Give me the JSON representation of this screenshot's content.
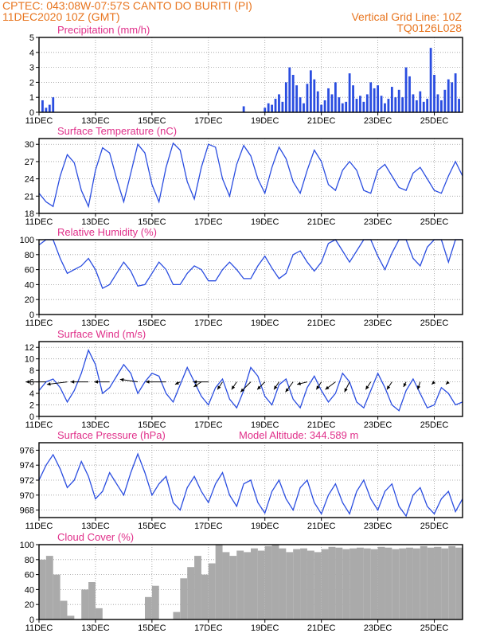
{
  "header": {
    "line1": "CPTEC:   043:08W-07:57S   CANTO DO BURITI (PI)",
    "line2": "11DEC2020 10Z (GMT)",
    "grid_note": "Vertical Grid Line: 10Z",
    "model_id": "TQ0126L028"
  },
  "colors": {
    "header": "#e8751f",
    "title": "#e0308a",
    "series": "#2a4de0",
    "cloud": "#aaaaaa"
  },
  "chart_data": [
    {
      "id": "precip",
      "type": "bar",
      "title": "Precipitation (mm/h)",
      "ylim": [
        0,
        5
      ],
      "yticks": [
        0,
        1,
        2,
        3,
        4,
        5
      ],
      "xlim": [
        0,
        360
      ],
      "xticks": [
        "11DEC",
        "13DEC",
        "15DEC",
        "17DEC",
        "19DEC",
        "21DEC",
        "23DEC",
        "25DEC"
      ],
      "grid": true,
      "x": [
        3,
        6,
        9,
        12,
        174,
        192,
        195,
        198,
        201,
        204,
        207,
        210,
        213,
        216,
        219,
        222,
        225,
        228,
        231,
        234,
        237,
        240,
        243,
        246,
        249,
        252,
        255,
        258,
        261,
        264,
        267,
        270,
        273,
        276,
        279,
        282,
        285,
        288,
        291,
        294,
        297,
        300,
        303,
        306,
        309,
        312,
        315,
        318,
        321,
        324,
        327,
        330,
        333,
        336,
        339,
        342,
        345,
        348,
        351,
        354,
        357
      ],
      "values": [
        0.8,
        0.3,
        0.5,
        1.0,
        0.4,
        0.3,
        0.6,
        0.5,
        0.9,
        1.2,
        0.7,
        2.0,
        3.0,
        2.5,
        1.8,
        1.0,
        0.6,
        1.9,
        2.8,
        2.2,
        1.4,
        0.5,
        0.8,
        1.6,
        1.2,
        2.0,
        1.0,
        0.6,
        0.7,
        2.6,
        1.8,
        0.9,
        1.1,
        0.7,
        1.2,
        2.0,
        1.6,
        1.8,
        1.1,
        0.6,
        0.9,
        1.7,
        1.0,
        1.5,
        1.0,
        3.0,
        2.4,
        1.2,
        0.8,
        1.4,
        0.7,
        0.9,
        4.3,
        2.5,
        1.2,
        0.8,
        1.5,
        2.2,
        2.0,
        2.6,
        0.9
      ]
    },
    {
      "id": "temp",
      "type": "line",
      "title": "Surface Temperature (nC)",
      "ylim": [
        18,
        31
      ],
      "yticks": [
        18,
        21,
        24,
        27,
        30
      ],
      "xlim": [
        0,
        360
      ],
      "xticks": [
        "11DEC",
        "13DEC",
        "15DEC",
        "17DEC",
        "19DEC",
        "21DEC",
        "23DEC",
        "25DEC"
      ],
      "grid": true,
      "x": [
        0,
        6,
        12,
        18,
        24,
        30,
        36,
        42,
        48,
        54,
        60,
        66,
        72,
        78,
        84,
        90,
        96,
        102,
        108,
        114,
        120,
        126,
        132,
        138,
        144,
        150,
        156,
        162,
        168,
        174,
        180,
        186,
        192,
        198,
        204,
        210,
        216,
        222,
        228,
        234,
        240,
        246,
        252,
        258,
        264,
        270,
        276,
        282,
        288,
        294,
        300,
        306,
        312,
        318,
        324,
        330,
        336,
        342,
        348,
        354,
        360
      ],
      "values": [
        21.5,
        20.0,
        19.2,
        24.5,
        28.2,
        26.8,
        22.0,
        19.2,
        25.5,
        29.4,
        28.5,
        24.0,
        20.0,
        25.0,
        30.0,
        28.5,
        23.0,
        20.0,
        26.0,
        30.2,
        29.0,
        23.5,
        20.5,
        26.0,
        30.0,
        29.5,
        24.0,
        21.0,
        26.5,
        29.8,
        28.0,
        24.0,
        21.5,
        26.0,
        29.5,
        27.5,
        23.5,
        21.5,
        25.5,
        29.0,
        27.0,
        23.0,
        22.0,
        25.5,
        27.0,
        25.5,
        22.0,
        21.5,
        25.5,
        26.5,
        24.5,
        22.5,
        22.0,
        25.0,
        26.0,
        24.0,
        22.0,
        21.5,
        24.5,
        27.0,
        24.5
      ]
    },
    {
      "id": "rh",
      "type": "line",
      "title": "Relative Humidity (%)",
      "ylim": [
        0,
        100
      ],
      "yticks": [
        0,
        20,
        40,
        60,
        80,
        100
      ],
      "xlim": [
        0,
        360
      ],
      "xticks": [
        "11DEC",
        "13DEC",
        "15DEC",
        "17DEC",
        "19DEC",
        "21DEC",
        "23DEC",
        "25DEC"
      ],
      "grid": true,
      "x": [
        0,
        6,
        12,
        18,
        24,
        30,
        36,
        42,
        48,
        54,
        60,
        66,
        72,
        78,
        84,
        90,
        96,
        102,
        108,
        114,
        120,
        126,
        132,
        138,
        144,
        150,
        156,
        162,
        168,
        174,
        180,
        186,
        192,
        198,
        204,
        210,
        216,
        222,
        228,
        234,
        240,
        246,
        252,
        258,
        264,
        270,
        276,
        282,
        288,
        294,
        300,
        306,
        312,
        318,
        324,
        330,
        336,
        342,
        348,
        354,
        360
      ],
      "values": [
        93,
        100,
        100,
        75,
        55,
        60,
        65,
        75,
        60,
        35,
        40,
        55,
        70,
        58,
        38,
        40,
        55,
        70,
        60,
        40,
        40,
        55,
        65,
        60,
        45,
        45,
        60,
        70,
        60,
        48,
        48,
        65,
        78,
        62,
        48,
        55,
        80,
        85,
        70,
        58,
        70,
        95,
        100,
        85,
        70,
        85,
        100,
        100,
        78,
        60,
        82,
        100,
        100,
        75,
        65,
        90,
        100,
        100,
        70,
        100,
        100
      ]
    },
    {
      "id": "wind",
      "type": "line",
      "title": "Surface Wind (m/s)",
      "ylim": [
        0,
        13
      ],
      "yticks": [
        0,
        2,
        4,
        6,
        8,
        10,
        12
      ],
      "xlim": [
        0,
        360
      ],
      "xticks": [
        "11DEC",
        "13DEC",
        "15DEC",
        "17DEC",
        "19DEC",
        "21DEC",
        "23DEC",
        "25DEC"
      ],
      "grid": true,
      "x": [
        0,
        6,
        12,
        18,
        24,
        30,
        36,
        42,
        48,
        54,
        60,
        66,
        72,
        78,
        84,
        90,
        96,
        102,
        108,
        114,
        120,
        126,
        132,
        138,
        144,
        150,
        156,
        162,
        168,
        174,
        180,
        186,
        192,
        198,
        204,
        210,
        216,
        222,
        228,
        234,
        240,
        246,
        252,
        258,
        264,
        270,
        276,
        282,
        288,
        294,
        300,
        306,
        312,
        318,
        324,
        330,
        336,
        342,
        348,
        354,
        360
      ],
      "values": [
        4.5,
        6.0,
        6.5,
        5.0,
        2.5,
        4.5,
        7.5,
        11.5,
        9.0,
        4.0,
        5.0,
        7.0,
        9.0,
        7.5,
        4.0,
        6.0,
        7.5,
        7.0,
        4.0,
        2.5,
        5.5,
        8.5,
        6.0,
        3.5,
        2.0,
        5.0,
        6.5,
        3.0,
        1.5,
        4.5,
        8.5,
        7.0,
        3.5,
        2.0,
        5.5,
        6.5,
        3.0,
        1.5,
        5.0,
        7.0,
        4.5,
        2.5,
        4.0,
        7.5,
        6.0,
        2.5,
        1.5,
        4.5,
        7.5,
        5.0,
        2.0,
        1.0,
        4.5,
        6.5,
        4.0,
        1.5,
        2.0,
        5.0,
        4.0,
        2.0,
        2.5
      ],
      "barbs": {
        "x": [
          6,
          24,
          42,
          60,
          84,
          108,
          120,
          138,
          144,
          156,
          168,
          180,
          192,
          204,
          216,
          228,
          240,
          252,
          264,
          282,
          300,
          312,
          324,
          336,
          348
        ],
        "u": [
          -8,
          -8,
          -7,
          -6,
          -7,
          -8,
          -2,
          -3,
          -6,
          -2,
          -2,
          -4,
          -3,
          -2,
          -3,
          -4,
          -2,
          -4,
          -2,
          -2,
          -2,
          -1,
          -1,
          -1,
          -1
        ],
        "v": [
          0,
          1,
          0,
          0,
          -1,
          0,
          1,
          2,
          0,
          3,
          3,
          4,
          3,
          3,
          4,
          1,
          3,
          3,
          4,
          3,
          3,
          2,
          3,
          1,
          1
        ]
      }
    },
    {
      "id": "pres",
      "type": "line",
      "title": "Surface Pressure (hPa)",
      "subtitle": "Model Altitude: 344.589  m",
      "ylim": [
        967,
        977
      ],
      "yticks": [
        968,
        970,
        972,
        974,
        976
      ],
      "xlim": [
        0,
        360
      ],
      "xticks": [
        "11DEC",
        "13DEC",
        "15DEC",
        "17DEC",
        "19DEC",
        "21DEC",
        "23DEC",
        "25DEC"
      ],
      "grid": true,
      "x": [
        0,
        6,
        12,
        18,
        24,
        30,
        36,
        42,
        48,
        54,
        60,
        66,
        72,
        78,
        84,
        90,
        96,
        102,
        108,
        114,
        120,
        126,
        132,
        138,
        144,
        150,
        156,
        162,
        168,
        174,
        180,
        186,
        192,
        198,
        204,
        210,
        216,
        222,
        228,
        234,
        240,
        246,
        252,
        258,
        264,
        270,
        276,
        282,
        288,
        294,
        300,
        306,
        312,
        318,
        324,
        330,
        336,
        342,
        348,
        354,
        360
      ],
      "values": [
        972.0,
        974.0,
        975.4,
        973.5,
        971.0,
        972.0,
        974.5,
        972.5,
        969.5,
        970.5,
        973.0,
        971.5,
        970.0,
        973.0,
        975.5,
        973.0,
        970.0,
        971.5,
        972.5,
        969.0,
        968.0,
        971.0,
        972.5,
        970.5,
        969.0,
        971.5,
        973.0,
        970.0,
        968.5,
        971.5,
        972.0,
        969.0,
        967.6,
        970.5,
        972.0,
        969.5,
        968.0,
        971.0,
        972.0,
        969.0,
        967.5,
        970.0,
        971.5,
        969.0,
        967.5,
        970.5,
        972.0,
        969.5,
        968.0,
        970.5,
        971.5,
        968.5,
        967.2,
        970.0,
        971.0,
        968.5,
        967.5,
        969.5,
        970.5,
        967.8,
        969.5
      ]
    },
    {
      "id": "cloud",
      "type": "area",
      "title": "Cloud Cover (%)",
      "ylim": [
        0,
        100
      ],
      "yticks": [
        0,
        20,
        40,
        60,
        80,
        100
      ],
      "xlim": [
        0,
        360
      ],
      "xticks": [
        "11DEC",
        "13DEC",
        "15DEC",
        "17DEC",
        "19DEC",
        "21DEC",
        "23DEC",
        "25DEC"
      ],
      "grid": true,
      "x": [
        0,
        6,
        12,
        18,
        24,
        30,
        36,
        42,
        48,
        54,
        60,
        66,
        72,
        78,
        84,
        90,
        96,
        102,
        108,
        114,
        120,
        126,
        132,
        138,
        144,
        150,
        156,
        162,
        168,
        174,
        180,
        186,
        192,
        198,
        204,
        210,
        216,
        222,
        228,
        234,
        240,
        246,
        252,
        258,
        264,
        270,
        276,
        282,
        288,
        294,
        300,
        306,
        312,
        318,
        324,
        330,
        336,
        342,
        348,
        354,
        360
      ],
      "values": [
        80,
        85,
        60,
        25,
        5,
        0,
        40,
        50,
        15,
        0,
        0,
        0,
        0,
        0,
        0,
        30,
        45,
        0,
        0,
        10,
        55,
        70,
        85,
        60,
        75,
        100,
        90,
        85,
        92,
        90,
        95,
        92,
        98,
        100,
        95,
        90,
        94,
        95,
        92,
        90,
        94,
        97,
        96,
        94,
        95,
        96,
        95,
        94,
        97,
        96,
        94,
        95,
        96,
        95,
        98,
        96,
        97,
        95,
        98,
        96,
        97
      ]
    }
  ]
}
